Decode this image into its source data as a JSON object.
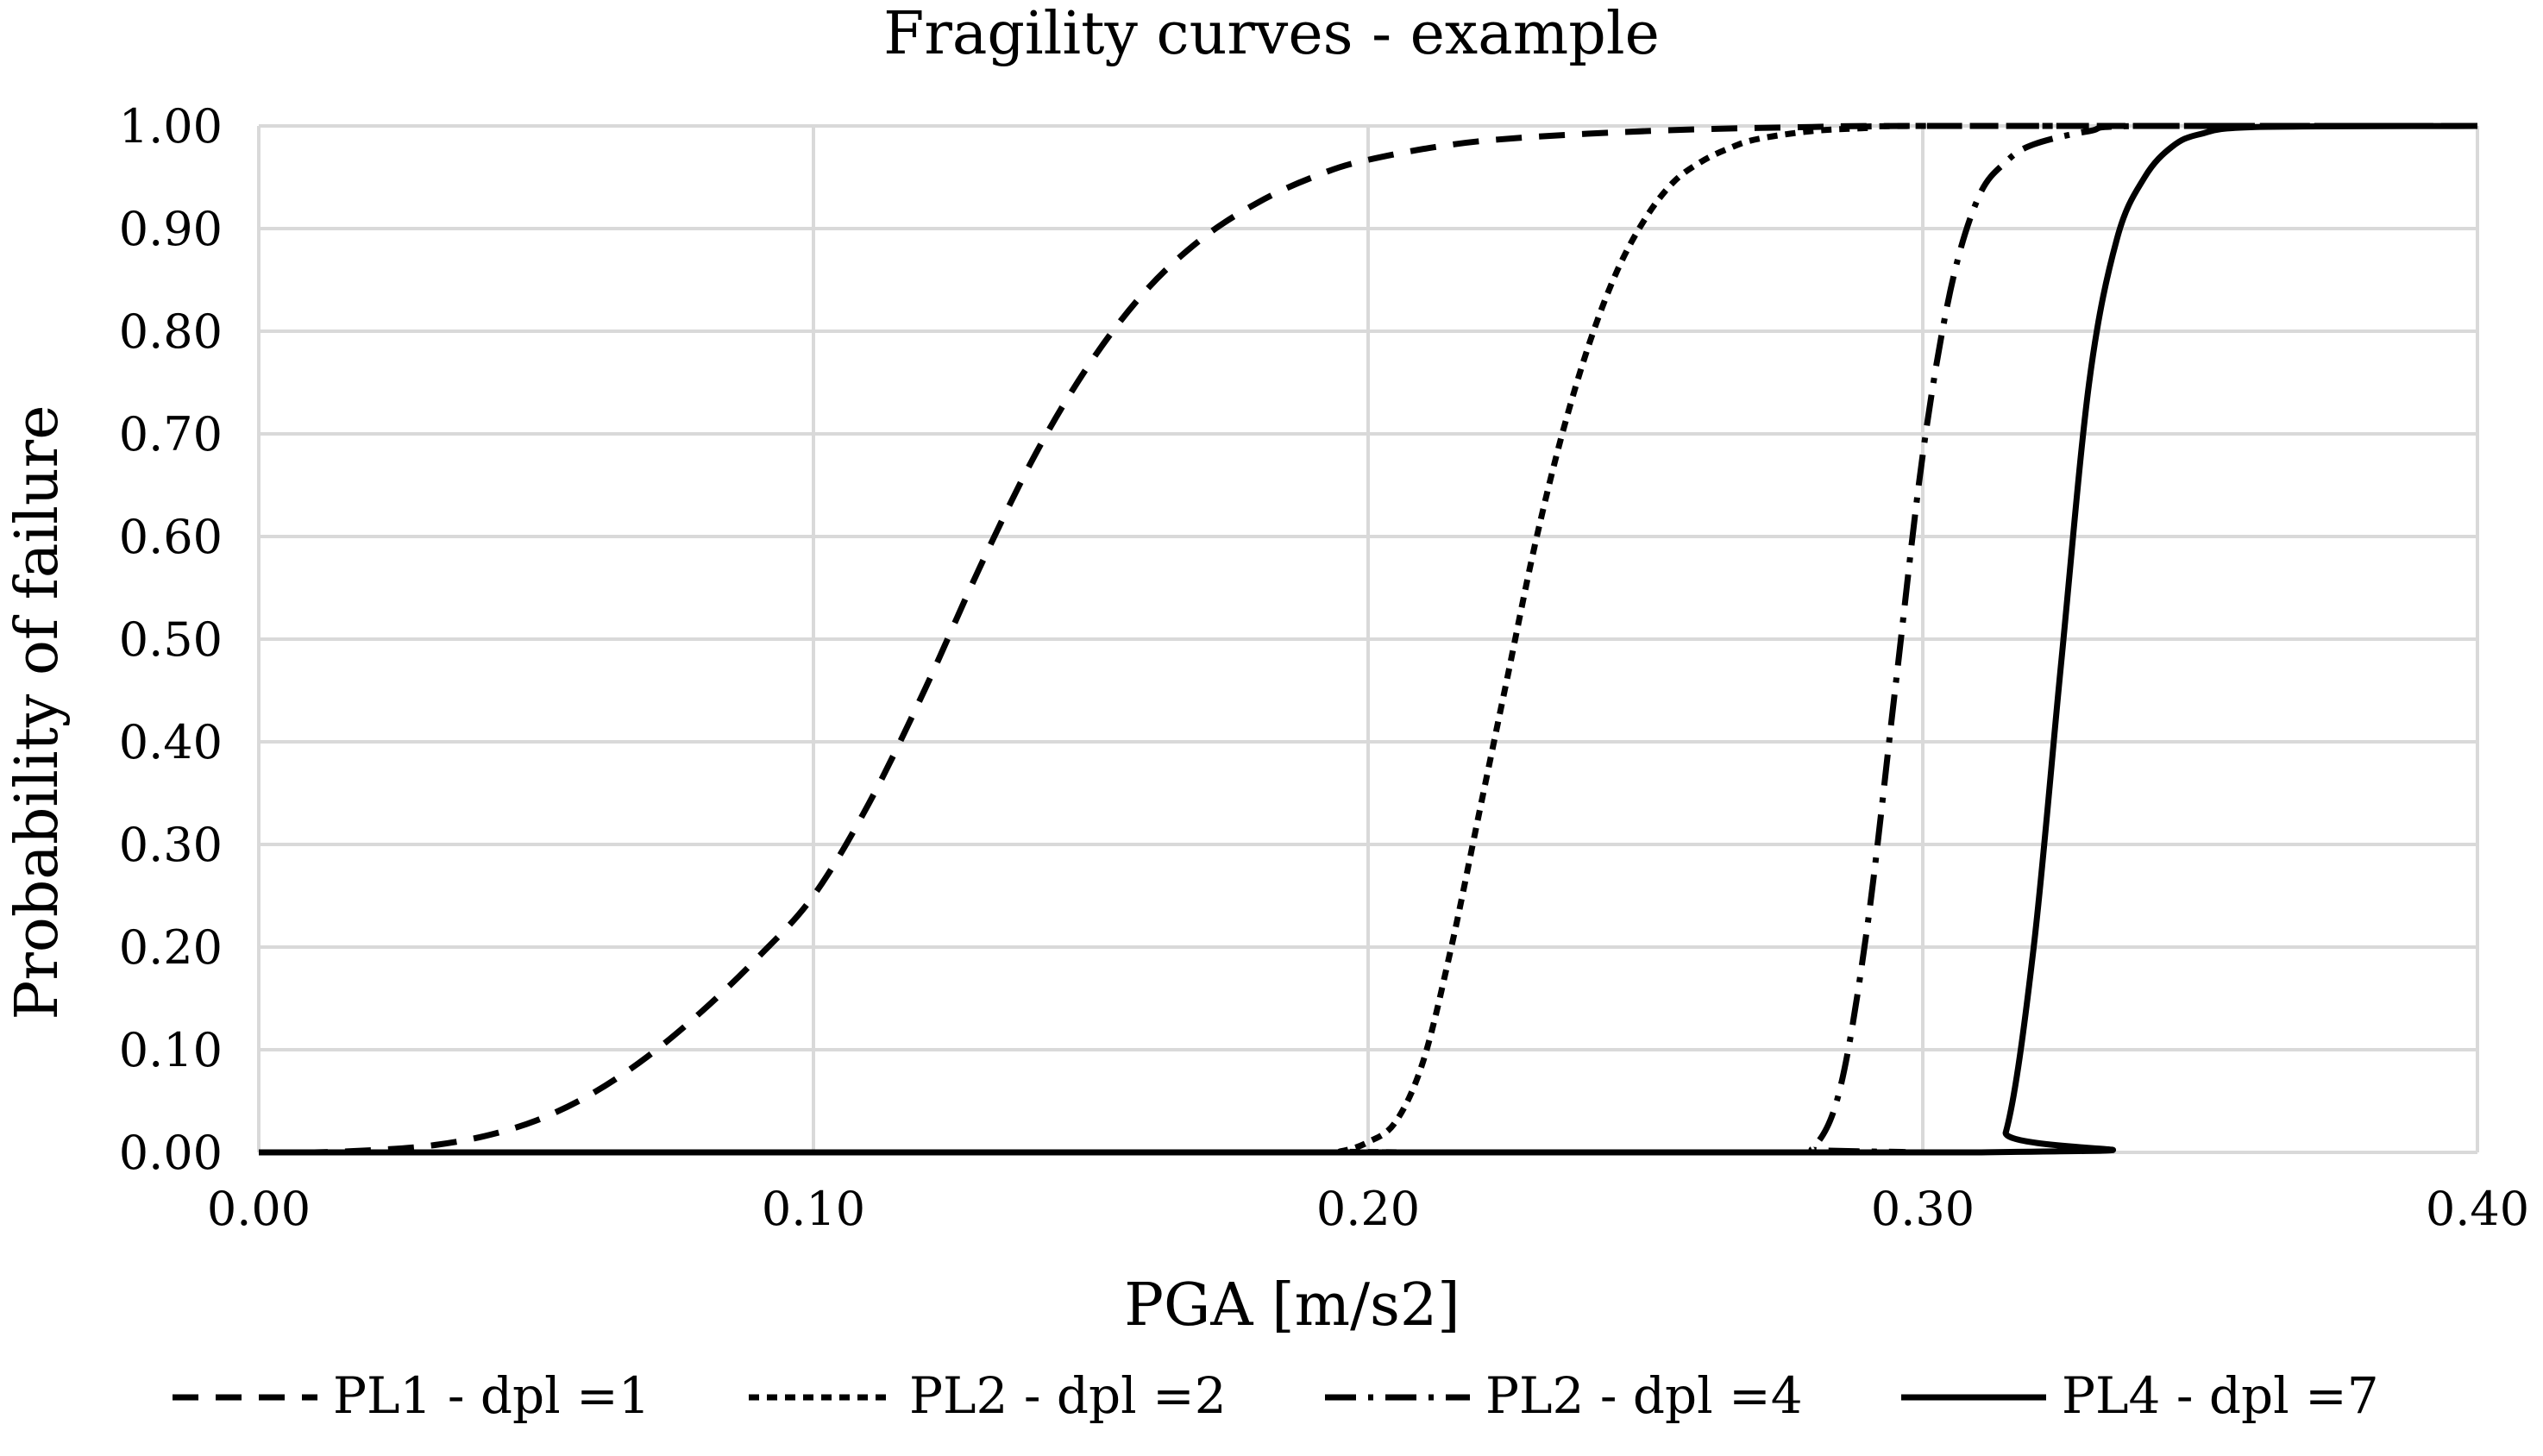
{
  "chart_data": {
    "type": "line",
    "title": "Fragility curves - example",
    "xlabel": "PGA [m/s2]",
    "ylabel": "Probability of failure",
    "xlim": [
      0.0,
      0.4
    ],
    "ylim": [
      0.0,
      1.0
    ],
    "x_ticks": [
      "0.00",
      "0.10",
      "0.20",
      "0.30",
      "0.40"
    ],
    "y_ticks": [
      "0.00",
      "0.10",
      "0.20",
      "0.30",
      "0.40",
      "0.50",
      "0.60",
      "0.70",
      "0.80",
      "0.90",
      "1.00"
    ],
    "grid": true,
    "legend_position": "bottom",
    "series": [
      {
        "name": "PL1 - dpl =1",
        "line_style": "dashed",
        "color": "#000000",
        "points": [
          [
            0.0,
            0.0
          ],
          [
            0.01,
            0.0
          ],
          [
            0.02,
            0.002
          ],
          [
            0.03,
            0.006
          ],
          [
            0.04,
            0.015
          ],
          [
            0.05,
            0.031
          ],
          [
            0.06,
            0.057
          ],
          [
            0.07,
            0.093
          ],
          [
            0.08,
            0.138
          ],
          [
            0.09,
            0.19
          ],
          [
            0.1,
            0.25
          ],
          [
            0.11,
            0.34
          ],
          [
            0.12,
            0.45
          ],
          [
            0.13,
            0.57
          ],
          [
            0.14,
            0.68
          ],
          [
            0.15,
            0.77
          ],
          [
            0.16,
            0.84
          ],
          [
            0.17,
            0.89
          ],
          [
            0.18,
            0.925
          ],
          [
            0.19,
            0.95
          ],
          [
            0.2,
            0.967
          ],
          [
            0.22,
            0.985
          ],
          [
            0.25,
            0.995
          ],
          [
            0.28,
            0.999
          ],
          [
            0.3,
            1.0
          ],
          [
            0.4,
            1.0
          ]
        ]
      },
      {
        "name": "PL2 - dpl =2",
        "line_style": "dotted",
        "color": "#000000",
        "points": [
          [
            0.0,
            0.0
          ],
          [
            0.19,
            0.0
          ],
          [
            0.195,
            0.001
          ],
          [
            0.2,
            0.01
          ],
          [
            0.205,
            0.03
          ],
          [
            0.21,
            0.09
          ],
          [
            0.215,
            0.2
          ],
          [
            0.22,
            0.33
          ],
          [
            0.225,
            0.46
          ],
          [
            0.23,
            0.59
          ],
          [
            0.235,
            0.7
          ],
          [
            0.24,
            0.79
          ],
          [
            0.245,
            0.86
          ],
          [
            0.25,
            0.91
          ],
          [
            0.255,
            0.945
          ],
          [
            0.26,
            0.965
          ],
          [
            0.265,
            0.978
          ],
          [
            0.27,
            0.987
          ],
          [
            0.28,
            0.995
          ],
          [
            0.29,
            0.998
          ],
          [
            0.3,
            1.0
          ],
          [
            0.4,
            1.0
          ]
        ]
      },
      {
        "name": "PL2 - dpl =4",
        "line_style": "dash-dot",
        "color": "#000000",
        "points": [
          [
            0.0,
            0.0
          ],
          [
            0.275,
            0.0
          ],
          [
            0.28,
            0.003
          ],
          [
            0.285,
            0.06
          ],
          [
            0.29,
            0.22
          ],
          [
            0.295,
            0.45
          ],
          [
            0.3,
            0.68
          ],
          [
            0.305,
            0.84
          ],
          [
            0.31,
            0.93
          ],
          [
            0.315,
            0.965
          ],
          [
            0.32,
            0.982
          ],
          [
            0.33,
            0.995
          ],
          [
            0.34,
            1.0
          ],
          [
            0.4,
            1.0
          ]
        ]
      },
      {
        "name": "PL4 - dpl =7",
        "line_style": "solid",
        "color": "#000000",
        "points": [
          [
            0.0,
            0.0
          ],
          [
            0.31,
            0.0
          ],
          [
            0.315,
            0.02
          ],
          [
            0.32,
            0.2
          ],
          [
            0.325,
            0.48
          ],
          [
            0.33,
            0.75
          ],
          [
            0.335,
            0.89
          ],
          [
            0.34,
            0.95
          ],
          [
            0.345,
            0.98
          ],
          [
            0.35,
            0.992
          ],
          [
            0.36,
            0.999
          ],
          [
            0.4,
            1.0
          ]
        ]
      }
    ]
  }
}
